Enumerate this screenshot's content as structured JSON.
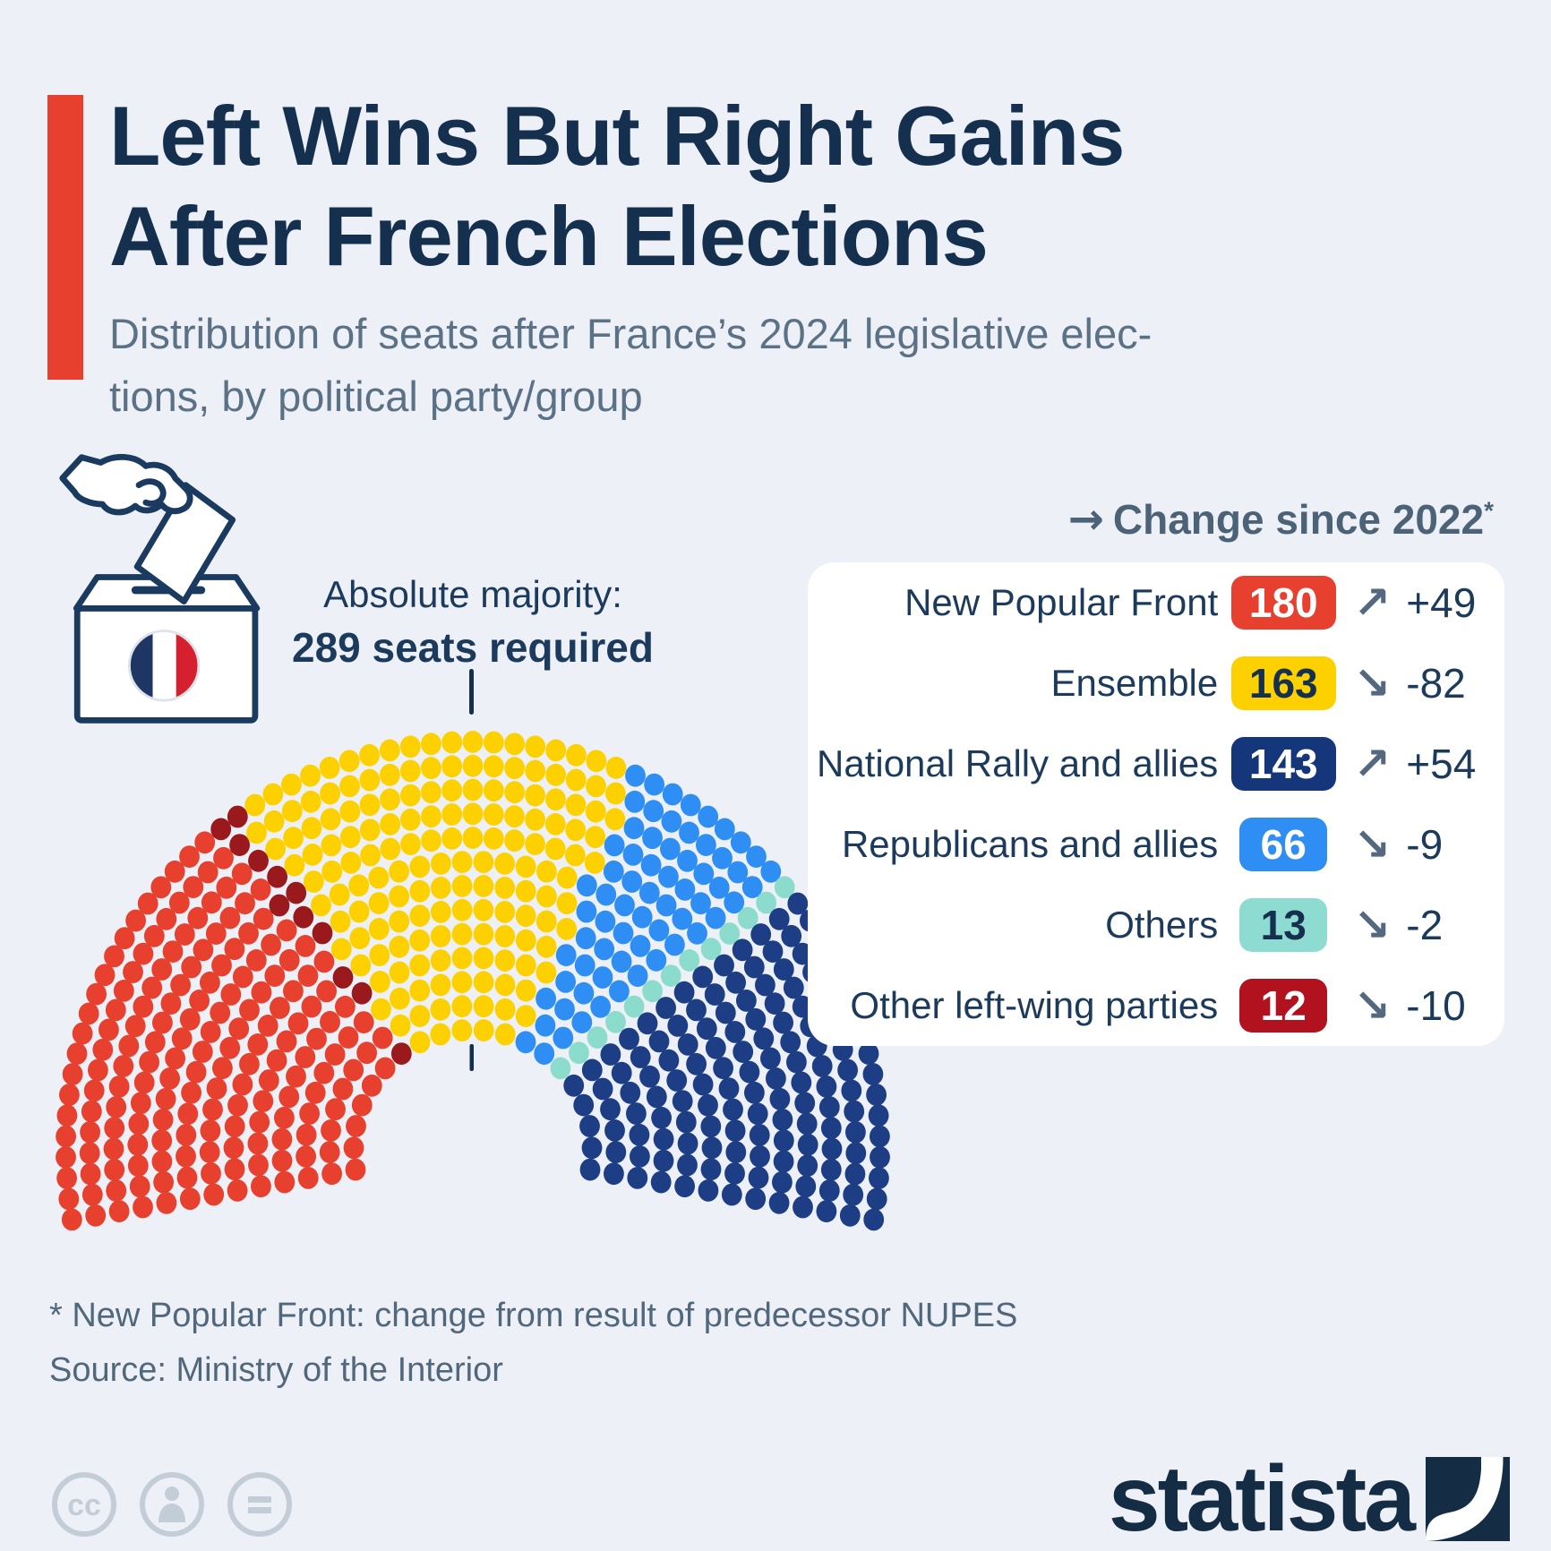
{
  "theme": {
    "background": "#edf1f7",
    "accent": "#e8402e",
    "title_color": "#15304f",
    "subtitle_color": "#5b7186",
    "text_dark": "#1b3a5c",
    "slate_header": "#4c6377",
    "arrow_color": "#54687f",
    "footnote_color": "#50677c",
    "panel_bg": "#ffffff",
    "tick_color": "#14304d",
    "cc_color": "#c3cdd8",
    "logo_color": "#142c44"
  },
  "header": {
    "title_line1": "Left Wins But Right Gains",
    "title_line2": "After French Elections",
    "subtitle_line1": "Distribution of seats after France’s 2024 legislative elec-",
    "subtitle_line2": "tions, by political party/group"
  },
  "ballot_icon": {
    "line_color": "#1b3a5f",
    "flag_blue": "#1f3563",
    "flag_white": "#ffffff",
    "flag_red": "#d7202f"
  },
  "majority_note": {
    "line1": "Absolute majority:",
    "line2": "289 seats required"
  },
  "legend": {
    "header_arrow": "→",
    "header_text": "Change since 2022",
    "header_asterisk": "*",
    "rows": [
      {
        "label": "New Popular Front",
        "seats": "180",
        "arrow": "↗",
        "change": "+49",
        "badge_bg": "#e8402e",
        "badge_fg": "#ffffff"
      },
      {
        "label": "Ensemble",
        "seats": "163",
        "arrow": "↘",
        "change": "-82",
        "badge_bg": "#fdd000",
        "badge_fg": "#15304f"
      },
      {
        "label": "National Rally and allies",
        "seats": "143",
        "arrow": "↗",
        "change": "+54",
        "badge_bg": "#16367b",
        "badge_fg": "#ffffff"
      },
      {
        "label": "Republicans and allies",
        "seats": "66",
        "arrow": "↘",
        "change": "-9",
        "badge_bg": "#2e8ef3",
        "badge_fg": "#ffffff"
      },
      {
        "label": "Others",
        "seats": "13",
        "arrow": "↘",
        "change": "-2",
        "badge_bg": "#8edcd1",
        "badge_fg": "#15304f"
      },
      {
        "label": "Other left-wing parties",
        "seats": "12",
        "arrow": "↘",
        "change": "-10",
        "badge_bg": "#b2111e",
        "badge_fg": "#ffffff"
      }
    ]
  },
  "chart_data": {
    "type": "parliament",
    "total_seats": 577,
    "majority_threshold": 289,
    "arc_span_deg": 200,
    "rows": 13,
    "seat_order_note": "parties listed in seating order from left to right",
    "parties": [
      {
        "name": "New Popular Front",
        "seats": 180,
        "change_since_2022": 49,
        "color": "#e8402e"
      },
      {
        "name": "Other left-wing parties",
        "seats": 12,
        "change_since_2022": -10,
        "color": "#99191d"
      },
      {
        "name": "Ensemble",
        "seats": 163,
        "change_since_2022": -82,
        "color": "#fdd000"
      },
      {
        "name": "Republicans and allies",
        "seats": 66,
        "change_since_2022": -9,
        "color": "#2e8ef3"
      },
      {
        "name": "Others",
        "seats": 13,
        "change_since_2022": -2,
        "color": "#8bdccd"
      },
      {
        "name": "National Rally and allies",
        "seats": 143,
        "change_since_2022": 54,
        "color": "#1d3e84"
      }
    ]
  },
  "footnotes": {
    "asterisk_note": "* New Popular Front: change from result of predecessor NUPES",
    "source": "Source: Ministry of the Interior"
  },
  "branding": {
    "logo_text": "statista"
  }
}
